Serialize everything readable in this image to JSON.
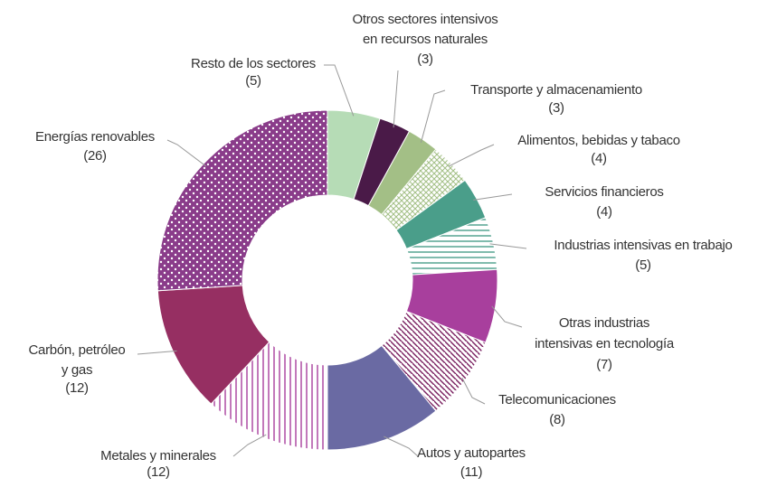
{
  "chart_data": {
    "type": "donut",
    "categories": [
      [
        "Resto de los sectores"
      ],
      [
        "Otros sectores intensivos",
        "en recursos naturales"
      ],
      [
        "Transporte y almacenamiento"
      ],
      [
        "Alimentos, bebidas y  tabaco"
      ],
      [
        "Servicios financieros"
      ],
      [
        "Industrias intensivas en trabajo"
      ],
      [
        "Otras industrias",
        "intensivas en tecnología"
      ],
      [
        "Telecomunicaciones"
      ],
      [
        "Autos y autopartes"
      ],
      [
        "Metales y minerales"
      ],
      [
        "Carbón, petróleo",
        "y  gas"
      ],
      [
        "Energías renovables"
      ]
    ],
    "values": [
      5,
      3,
      3,
      4,
      4,
      5,
      7,
      8,
      11,
      12,
      12,
      26
    ],
    "value_labels": [
      "(5)",
      "(3)",
      "(3)",
      "(4)",
      "(4)",
      "(5)",
      "(7)",
      "(8)",
      "(11)",
      "(12)",
      "(12)",
      "(26)"
    ],
    "colors": [
      "#b6dcb6",
      "#4a1a48",
      "#a3bf86",
      "#a3bf86",
      "#4a9e8a",
      "#4a9e8a",
      "#a83f9d",
      "#7a2060",
      "#6a6aa3",
      "#a83f9d",
      "#962f62",
      "#8a3c8a"
    ],
    "patterns": [
      "solid",
      "solid",
      "solid",
      "checker",
      "solid",
      "hlines",
      "solid",
      "diag",
      "solid",
      "vlines",
      "solid",
      "dots"
    ]
  }
}
